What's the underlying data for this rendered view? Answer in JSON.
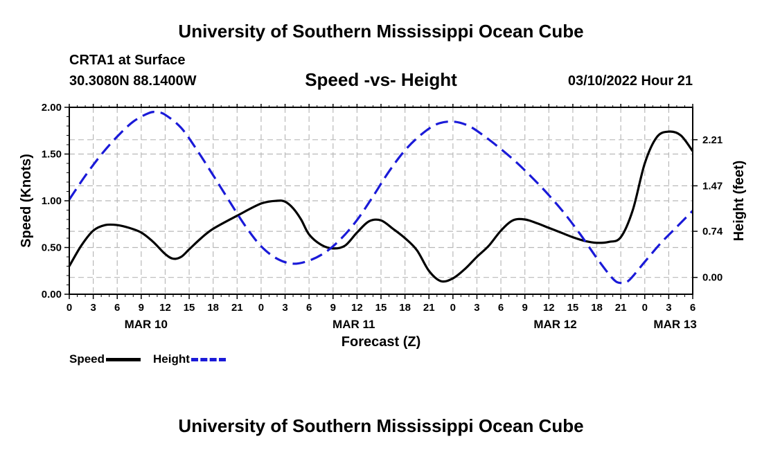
{
  "header": {
    "title": "University of Southern Mississippi Ocean Cube",
    "station": "CRTA1 at Surface",
    "coords": "30.3080N  88.1400W",
    "subtitle": "Speed -vs- Height",
    "datetime": "03/10/2022 Hour 21"
  },
  "footer": {
    "title": "University of Southern Mississippi Ocean Cube"
  },
  "legend": {
    "speed_label": "Speed",
    "height_label": "Height"
  },
  "chart_data": {
    "type": "line",
    "title": "Speed -vs- Height",
    "xlabel": "Forecast (Z)",
    "ylabel": "Speed (Knots)",
    "y2label": "Height (feet)",
    "xlim": [
      0,
      78
    ],
    "ylim": [
      0,
      2.0
    ],
    "y_ticks": [
      0.0,
      0.5,
      1.0,
      1.5,
      2.0
    ],
    "y_tick_labels": [
      "0.00",
      "0.50",
      "1.00",
      "1.50",
      "2.00"
    ],
    "y2_ticks": [
      0.0,
      0.74,
      1.47,
      2.21
    ],
    "y2_tick_labels": [
      "0.00",
      "0.74",
      "1.47",
      "2.21"
    ],
    "y2_zero_in_y": 0.18,
    "y2_scale": 0.6667,
    "x_ticks": [
      0,
      3,
      6,
      9,
      12,
      15,
      18,
      21,
      24,
      27,
      30,
      33,
      36,
      39,
      42,
      45,
      48,
      51,
      54,
      57,
      60,
      63,
      66,
      69,
      72,
      75,
      78
    ],
    "x_tick_labels": [
      "0",
      "3",
      "6",
      "9",
      "12",
      "15",
      "18",
      "21",
      "0",
      "3",
      "6",
      "9",
      "12",
      "15",
      "18",
      "21",
      "0",
      "3",
      "6",
      "9",
      "12",
      "15",
      "18",
      "21",
      "0",
      "3",
      "6"
    ],
    "date_labels": [
      {
        "label": "MAR 10",
        "x": 9.6
      },
      {
        "label": "MAR 11",
        "x": 35.6
      },
      {
        "label": "MAR 12",
        "x": 60.8
      },
      {
        "label": "MAR 13",
        "x": 75.8
      }
    ],
    "grid": true,
    "series": [
      {
        "name": "Speed",
        "axis": "left",
        "color": "#000000",
        "style": "solid",
        "x": [
          0,
          1.5,
          3,
          4.5,
          6,
          7.5,
          9,
          10.5,
          12,
          13,
          14,
          15,
          16.5,
          18,
          21,
          24,
          26,
          27,
          28,
          29,
          30,
          31.5,
          33,
          34.5,
          36,
          37.5,
          39,
          40.5,
          42,
          43.5,
          45,
          46.5,
          48,
          49.5,
          51,
          52.5,
          54,
          55.5,
          57,
          58.5,
          60,
          61.5,
          63,
          64.5,
          66,
          67.5,
          69,
          70.5,
          72,
          73.5,
          75,
          76.5,
          78
        ],
        "y": [
          0.3,
          0.52,
          0.68,
          0.74,
          0.74,
          0.71,
          0.66,
          0.56,
          0.43,
          0.38,
          0.4,
          0.48,
          0.6,
          0.7,
          0.84,
          0.97,
          1.0,
          0.99,
          0.92,
          0.8,
          0.64,
          0.53,
          0.49,
          0.52,
          0.66,
          0.78,
          0.79,
          0.7,
          0.6,
          0.47,
          0.25,
          0.14,
          0.17,
          0.27,
          0.4,
          0.52,
          0.68,
          0.79,
          0.8,
          0.76,
          0.71,
          0.66,
          0.61,
          0.57,
          0.55,
          0.56,
          0.61,
          0.9,
          1.4,
          1.68,
          1.74,
          1.7,
          1.53
        ]
      },
      {
        "name": "Height",
        "axis": "right",
        "color": "#1a1ad8",
        "style": "dashed",
        "x": [
          0,
          2,
          4,
          6,
          8,
          10,
          11,
          12,
          14,
          16,
          18,
          20,
          22,
          24,
          26,
          28,
          30,
          32,
          34,
          36,
          38,
          40,
          42,
          44,
          46,
          48,
          50,
          52,
          54,
          56,
          58,
          60,
          62,
          64,
          66,
          68,
          69,
          70,
          72,
          74,
          76,
          78
        ],
        "y": [
          1.25,
          1.63,
          1.97,
          2.26,
          2.5,
          2.64,
          2.65,
          2.61,
          2.4,
          2.04,
          1.64,
          1.23,
          0.83,
          0.5,
          0.3,
          0.22,
          0.27,
          0.4,
          0.62,
          0.92,
          1.3,
          1.7,
          2.04,
          2.29,
          2.46,
          2.5,
          2.43,
          2.26,
          2.06,
          1.84,
          1.59,
          1.32,
          1.02,
          0.68,
          0.31,
          -0.02,
          -0.09,
          -0.05,
          0.25,
          0.55,
          0.81,
          1.07
        ]
      }
    ]
  }
}
